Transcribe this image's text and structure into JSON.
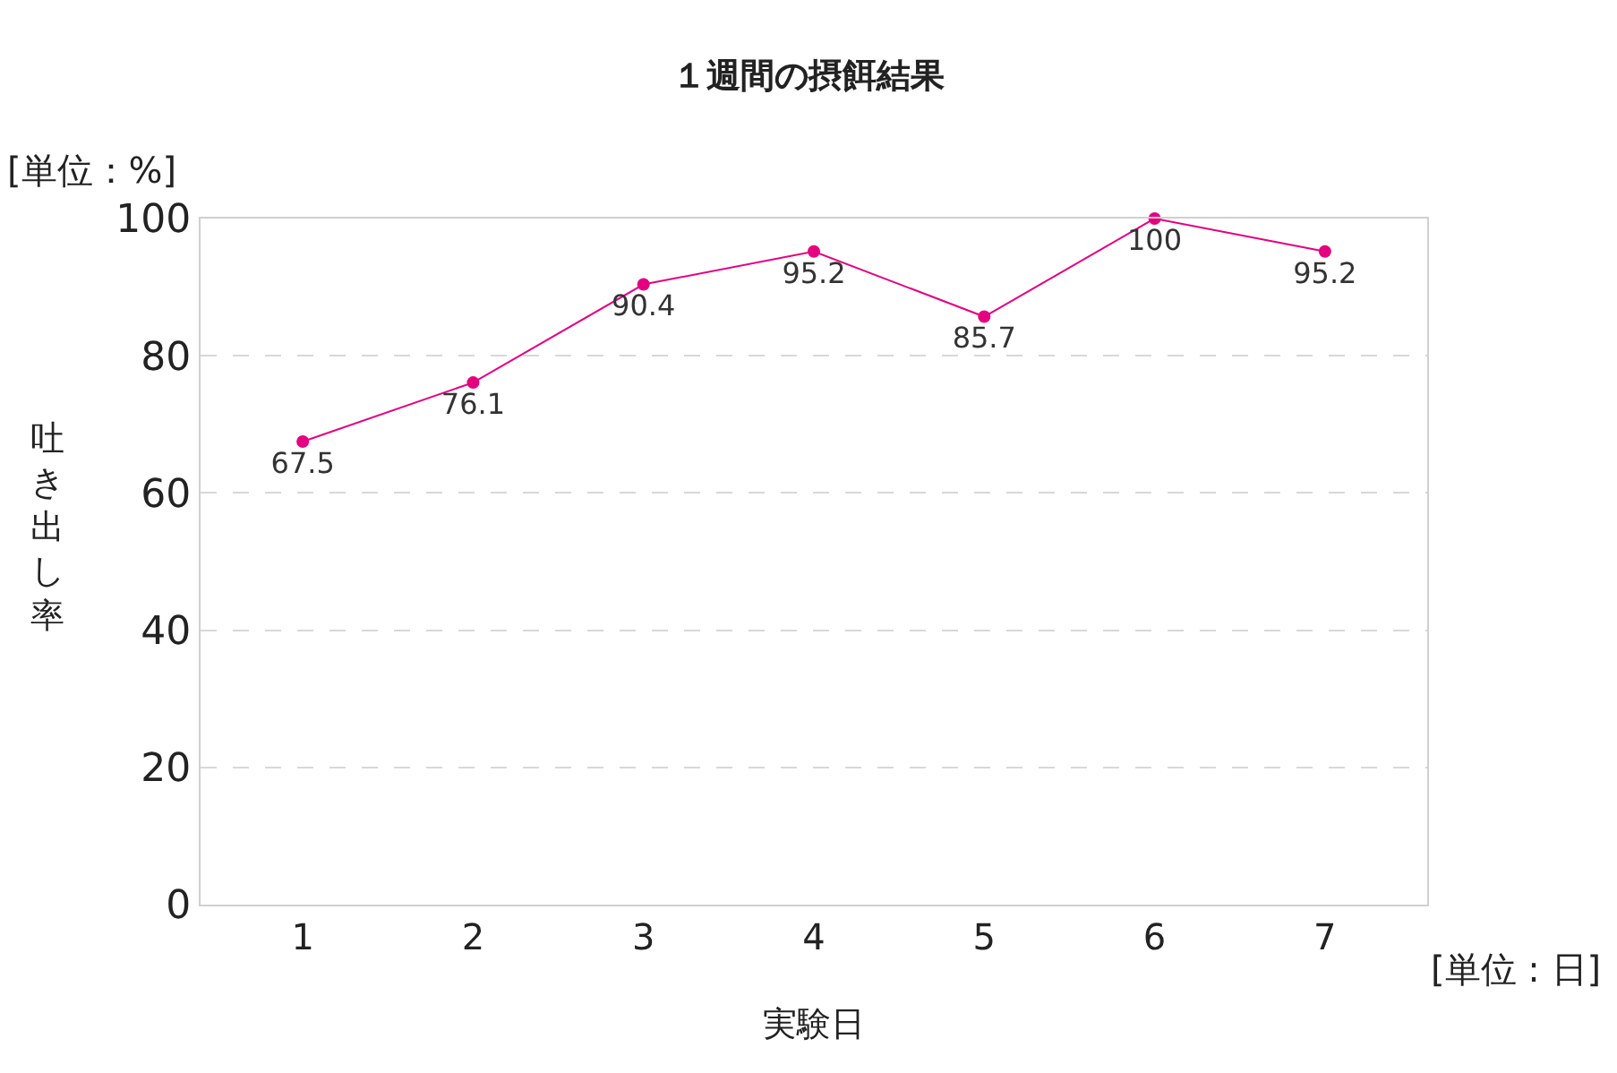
{
  "chart_data": {
    "type": "line",
    "title": "１週間の摂餌結果",
    "xlabel": "実験日",
    "ylabel": "吐き出し率",
    "categories": [
      "1",
      "2",
      "3",
      "4",
      "5",
      "6",
      "7"
    ],
    "series": [
      {
        "color": "#e4007f",
        "values": [
          67.5,
          76.1,
          90.4,
          95.2,
          85.7,
          100,
          95.2
        ]
      }
    ],
    "ylim": [
      0,
      100
    ],
    "yticks": [
      0,
      20,
      40,
      60,
      80,
      100
    ],
    "annotations": [
      "[単位：%]",
      "[単位 : 日]"
    ],
    "data_labels": true,
    "grid": "y",
    "marker": "circle",
    "line_style": "solid",
    "legend": false
  }
}
